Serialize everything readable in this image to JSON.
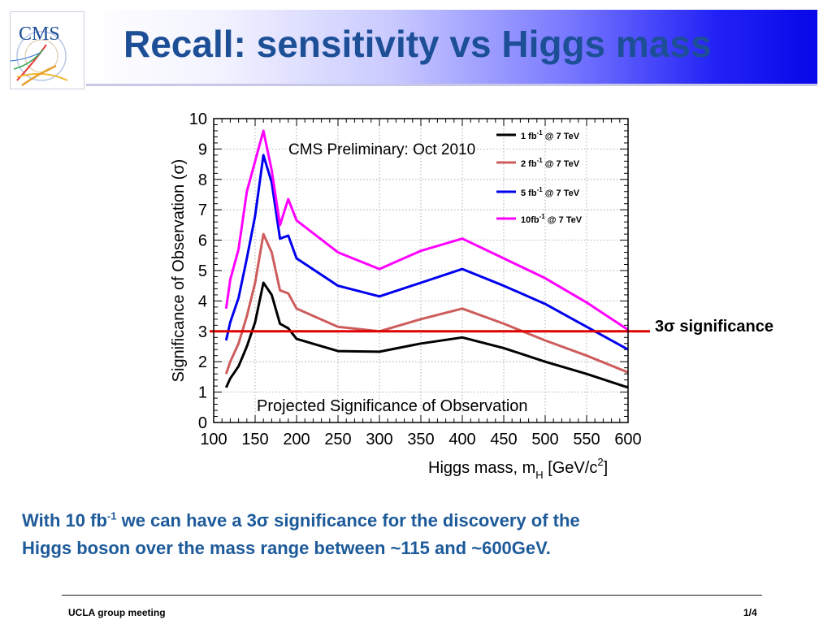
{
  "header": {
    "title": "Recall: sensitivity vs Higgs mass",
    "logo_text": "CMS"
  },
  "colors": {
    "title": "#1d4f97",
    "body_text": "#1d5a9a",
    "threshold_line": "#e00000",
    "series_1fb": "#000000",
    "series_2fb": "#cd5c5c",
    "series_5fb": "#0000ee",
    "series_10fb": "#ff00ff"
  },
  "annotation": {
    "sigma_label_prefix": "3",
    "sigma_symbol": "σ",
    "sigma_label_suffix": " significance"
  },
  "body": {
    "line1_a": "With 10 fb",
    "line1_sup": "-1",
    "line1_b": " we can have a 3",
    "line1_sigma": "σ",
    "line1_c": " significance for the discovery of the",
    "line2": "Higgs boson over the mass range between ~115 and ~600GeV."
  },
  "footer": {
    "left": "UCLA group meeting",
    "right": "1/4"
  },
  "chart_data": {
    "type": "line",
    "title": "CMS Preliminary: Oct 2010",
    "subtitle": "Projected Significance of Observation",
    "ylabel": "Significance of Observation (σ)",
    "xlabel_main": "Higgs mass, m",
    "xlabel_sub": "H",
    "xlabel_unit": " [GeV/c",
    "xlabel_unit_sup": "2",
    "xlabel_unit_end": "]",
    "xlim": [
      100,
      600
    ],
    "ylim": [
      0,
      10
    ],
    "xticks": [
      100,
      150,
      200,
      250,
      300,
      350,
      400,
      450,
      500,
      550,
      600
    ],
    "yticks": [
      0,
      1,
      2,
      3,
      4,
      5,
      6,
      7,
      8,
      9,
      10
    ],
    "grid": true,
    "legend_position": "top-right",
    "threshold": {
      "y": 3,
      "color": "#e00000"
    },
    "series": [
      {
        "name_main": "1 fb",
        "name_sup": "-1",
        "name_end": " @ 7 TeV",
        "color": "#000000",
        "x": [
          115,
          120,
          130,
          140,
          150,
          160,
          170,
          180,
          190,
          200,
          250,
          300,
          350,
          400,
          450,
          500,
          550,
          600
        ],
        "y": [
          1.15,
          1.45,
          1.85,
          2.5,
          3.3,
          4.6,
          4.2,
          3.25,
          3.1,
          2.75,
          2.35,
          2.33,
          2.6,
          2.8,
          2.45,
          2.0,
          1.6,
          1.15
        ]
      },
      {
        "name_main": "2 fb",
        "name_sup": "-1",
        "name_end": " @ 7 TeV",
        "color": "#cd5c5c",
        "x": [
          115,
          120,
          130,
          140,
          150,
          160,
          170,
          180,
          190,
          200,
          250,
          300,
          350,
          400,
          450,
          500,
          550,
          600
        ],
        "y": [
          1.6,
          2.0,
          2.6,
          3.5,
          4.6,
          6.2,
          5.6,
          4.35,
          4.25,
          3.75,
          3.15,
          3.0,
          3.4,
          3.75,
          3.25,
          2.7,
          2.2,
          1.65
        ]
      },
      {
        "name_main": "5 fb",
        "name_sup": "-1",
        "name_end": " @ 7 TeV",
        "color": "#0000ee",
        "x": [
          115,
          120,
          130,
          140,
          150,
          160,
          170,
          180,
          190,
          200,
          250,
          300,
          350,
          400,
          450,
          500,
          550,
          600
        ],
        "y": [
          2.7,
          3.3,
          4.1,
          5.4,
          6.8,
          8.8,
          7.9,
          6.05,
          6.15,
          5.4,
          4.5,
          4.15,
          4.6,
          5.05,
          4.5,
          3.9,
          3.15,
          2.4
        ]
      },
      {
        "name_main": "10fb",
        "name_sup": "-1",
        "name_end": " @ 7 TeV",
        "color": "#ff00ff",
        "x": [
          115,
          120,
          130,
          140,
          150,
          160,
          170,
          180,
          190,
          200,
          250,
          300,
          350,
          400,
          450,
          500,
          550,
          600
        ],
        "y": [
          3.75,
          4.7,
          5.7,
          7.6,
          8.6,
          9.6,
          8.3,
          6.5,
          7.35,
          6.65,
          5.6,
          5.05,
          5.65,
          6.05,
          5.4,
          4.75,
          3.95,
          3.05
        ]
      }
    ]
  }
}
